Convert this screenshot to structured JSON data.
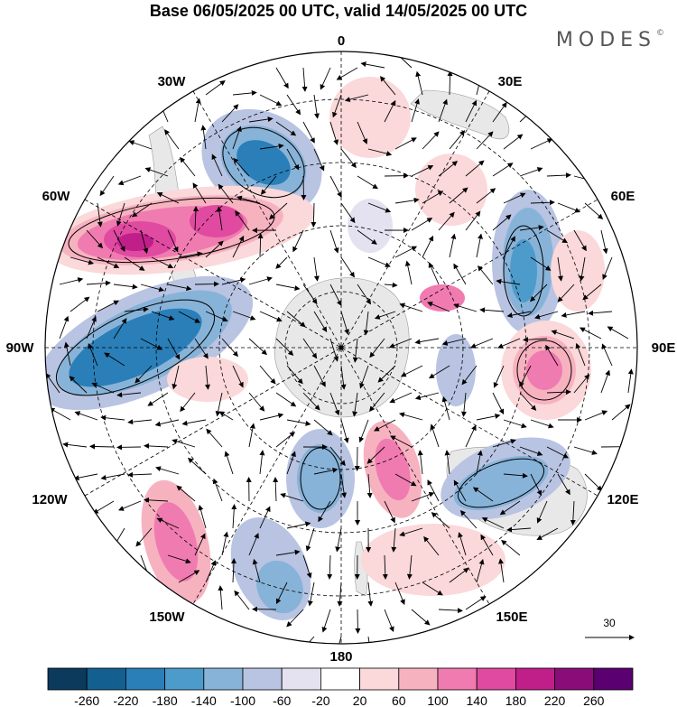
{
  "title": "Base 06/05/2025 00 UTC, valid 14/05/2025 00 UTC",
  "brand": "MODES",
  "brand_mark": "©",
  "meridian_labels": {
    "lon_0": "0",
    "lon_30e": "30E",
    "lon_60e": "60E",
    "lon_90e": "90E",
    "lon_120e": "120E",
    "lon_150e": "150E",
    "lon_180": "180",
    "lon_150w": "150W",
    "lon_120w": "120W",
    "lon_90w": "90W",
    "lon_60w": "60W",
    "lon_30w": "30W"
  },
  "reference_vector": {
    "label": "30"
  },
  "colorbar": {
    "ticks": [
      "-260",
      "-220",
      "-180",
      "-140",
      "-100",
      "-60",
      "-20",
      "20",
      "60",
      "100",
      "140",
      "180",
      "220",
      "260"
    ],
    "colors": [
      "#0b3a5c",
      "#135f8f",
      "#2a7fb8",
      "#4d9bcb",
      "#88b3d8",
      "#b8c4e2",
      "#e4e2f0",
      "#ffffff",
      "#fbd8da",
      "#f7b2c0",
      "#f07bb0",
      "#e04aa0",
      "#c01f8a",
      "#8a0c78",
      "#5a0070"
    ]
  },
  "icons": {
    "reference_arrow": "arrow-right-icon"
  }
}
